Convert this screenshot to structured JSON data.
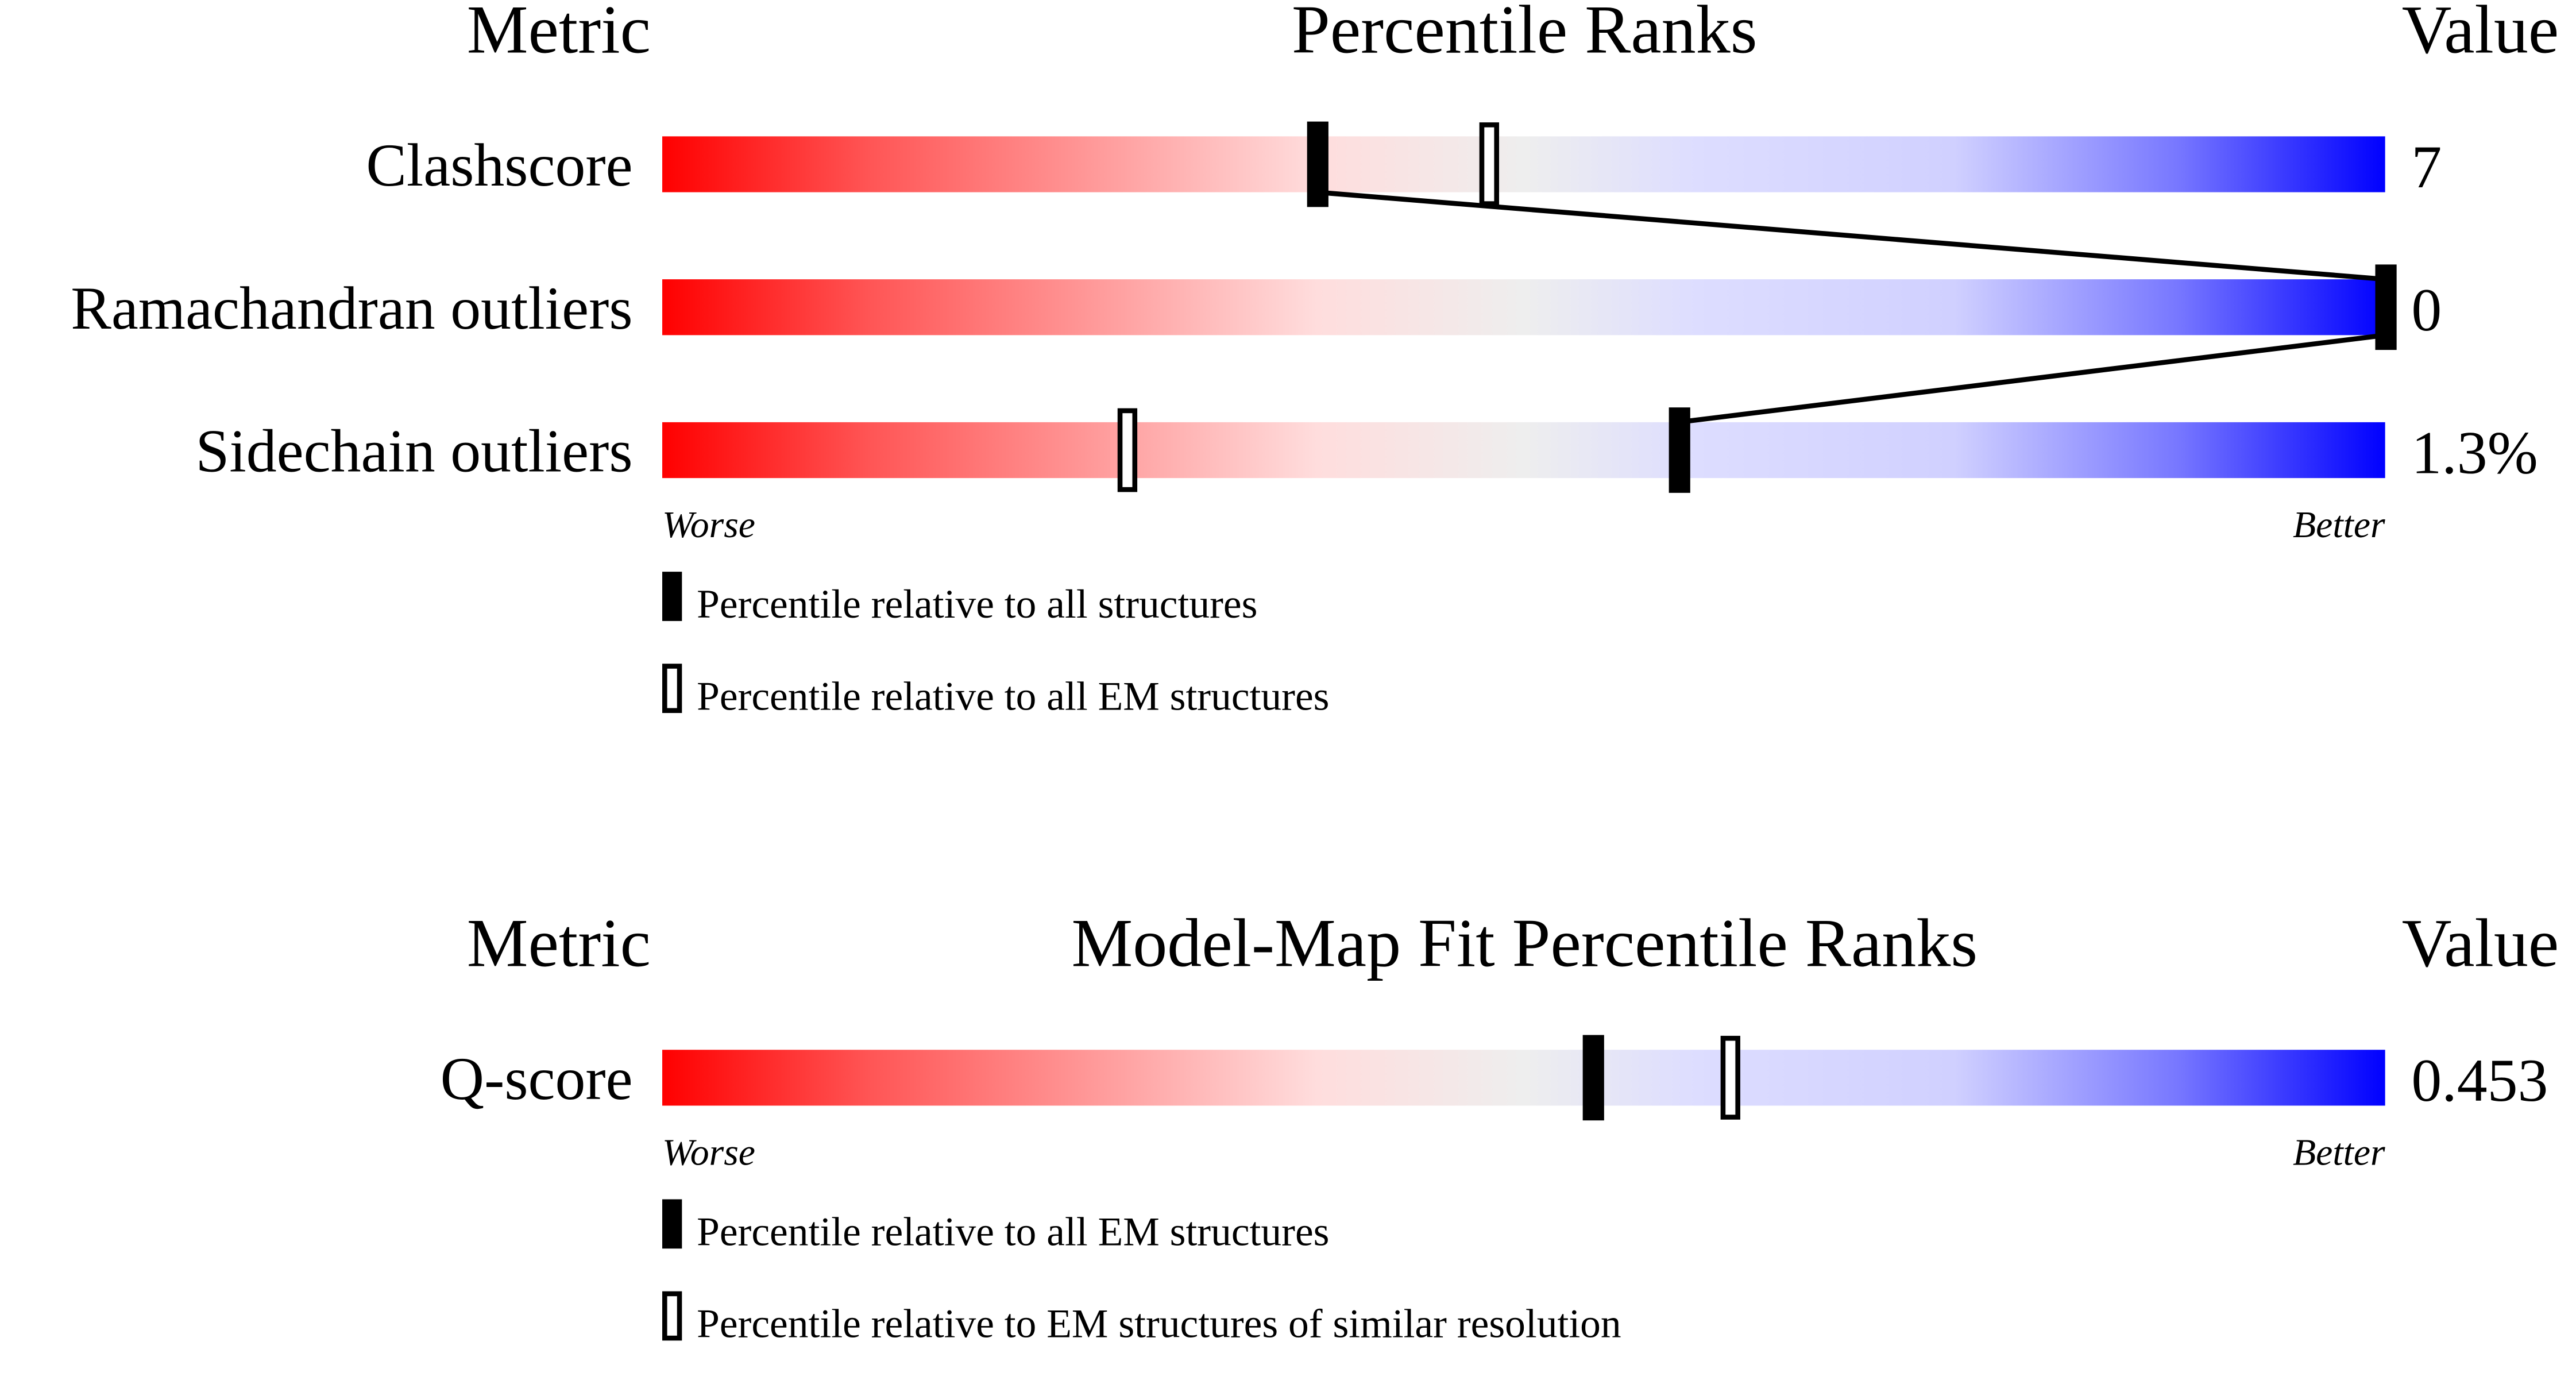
{
  "chart_data": [
    {
      "type": "bar",
      "headers": {
        "metric": "Metric",
        "title": "Percentile Ranks",
        "value": "Value"
      },
      "categories": [
        "Clashscore",
        "Ramachandran outliers",
        "Sidechain outliers"
      ],
      "values": [
        "7",
        "0",
        "1.3%"
      ],
      "series": [
        {
          "name": "Percentile relative to all structures",
          "marker": "filled",
          "values": [
            38,
            100,
            59
          ]
        },
        {
          "name": "Percentile relative to all EM structures",
          "marker": "open",
          "values": [
            48,
            null,
            27
          ]
        }
      ],
      "xlim": [
        0,
        100
      ],
      "worse_label": "Worse",
      "better_label": "Better",
      "connect_filled": true
    },
    {
      "type": "bar",
      "headers": {
        "metric": "Metric",
        "title": "Model-Map Fit Percentile Ranks",
        "value": "Value"
      },
      "categories": [
        "Q-score"
      ],
      "values": [
        "0.453"
      ],
      "series": [
        {
          "name": "Percentile relative to all EM structures",
          "marker": "filled",
          "values": [
            54
          ]
        },
        {
          "name": "Percentile relative to EM structures of similar resolution",
          "marker": "open",
          "values": [
            62
          ]
        }
      ],
      "xlim": [
        0,
        100
      ],
      "worse_label": "Worse",
      "better_label": "Better",
      "connect_filled": false
    }
  ],
  "colors": {
    "worse": "#ff0000",
    "middle": "#eeeeee",
    "better": "#0000ff"
  }
}
